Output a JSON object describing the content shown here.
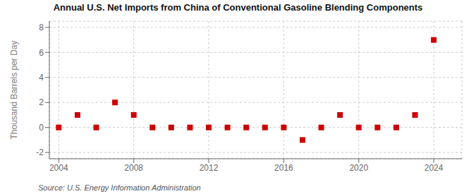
{
  "chart_data": {
    "type": "scatter",
    "title": "Annual U.S. Net Imports from China of Conventional Gasoline Blending Components",
    "y_label": "Thousand Barrels per Day",
    "annotations": [
      "Source: U.S. Energy Information Administration"
    ],
    "x": [
      2004,
      2005,
      2006,
      2007,
      2008,
      2009,
      2010,
      2011,
      2012,
      2013,
      2014,
      2015,
      2016,
      2017,
      2018,
      2019,
      2020,
      2021,
      2022,
      2023,
      2024
    ],
    "values": [
      0,
      1,
      0,
      2,
      1,
      0,
      0,
      0,
      0,
      0,
      0,
      0,
      0,
      -1,
      0,
      1,
      0,
      0,
      0,
      1,
      7
    ],
    "color": "#cc0000",
    "marker": "square",
    "xlim": [
      2003.5,
      2025.5
    ],
    "ylim": [
      -2.5,
      8.5
    ],
    "xticks": [
      2004,
      2008,
      2012,
      2016,
      2020,
      2024
    ],
    "yticks": [
      -2,
      0,
      2,
      4,
      6,
      8
    ],
    "grid": true
  }
}
